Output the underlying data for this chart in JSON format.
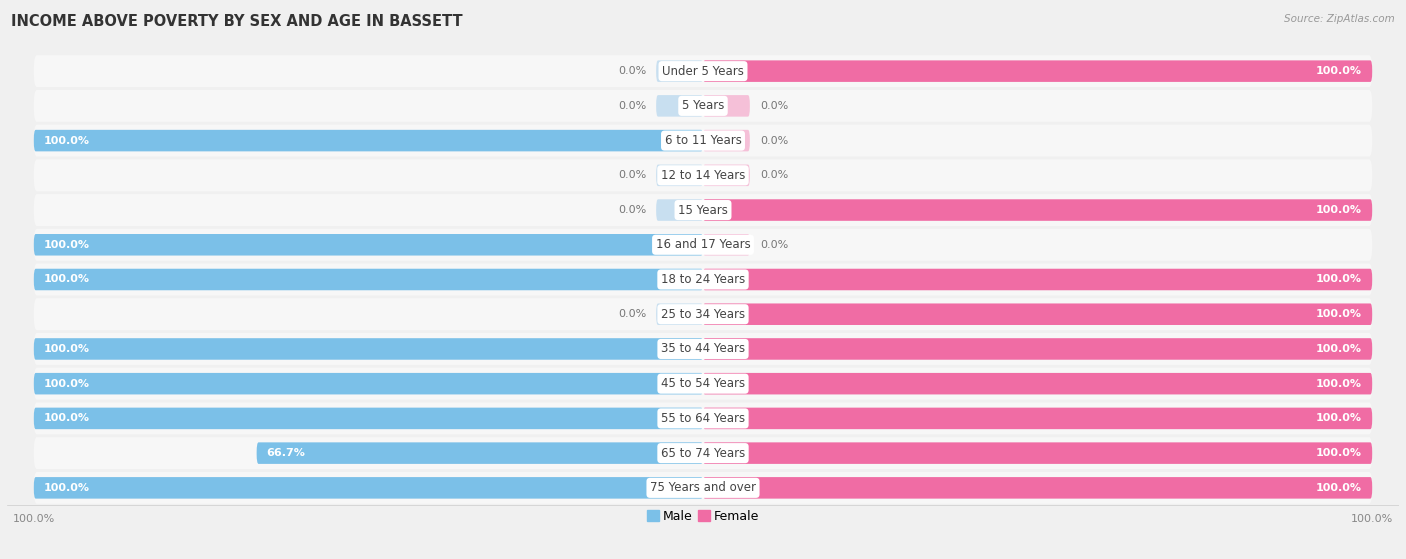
{
  "title": "INCOME ABOVE POVERTY BY SEX AND AGE IN BASSETT",
  "source": "Source: ZipAtlas.com",
  "categories": [
    "Under 5 Years",
    "5 Years",
    "6 to 11 Years",
    "12 to 14 Years",
    "15 Years",
    "16 and 17 Years",
    "18 to 24 Years",
    "25 to 34 Years",
    "35 to 44 Years",
    "45 to 54 Years",
    "55 to 64 Years",
    "65 to 74 Years",
    "75 Years and over"
  ],
  "male_values": [
    0.0,
    0.0,
    100.0,
    0.0,
    0.0,
    100.0,
    100.0,
    0.0,
    100.0,
    100.0,
    100.0,
    66.7,
    100.0
  ],
  "female_values": [
    100.0,
    0.0,
    0.0,
    0.0,
    100.0,
    0.0,
    100.0,
    100.0,
    100.0,
    100.0,
    100.0,
    100.0,
    100.0
  ],
  "male_color": "#7bc0e8",
  "female_color": "#f06ca4",
  "male_color_light": "#c8dff0",
  "female_color_light": "#f5c0d8",
  "row_bg": "#e8e8e8",
  "row_fill": "#f7f7f7",
  "title_fontsize": 10.5,
  "label_fontsize": 8.5,
  "value_fontsize": 8.0,
  "axis_tick_fontsize": 8.0
}
